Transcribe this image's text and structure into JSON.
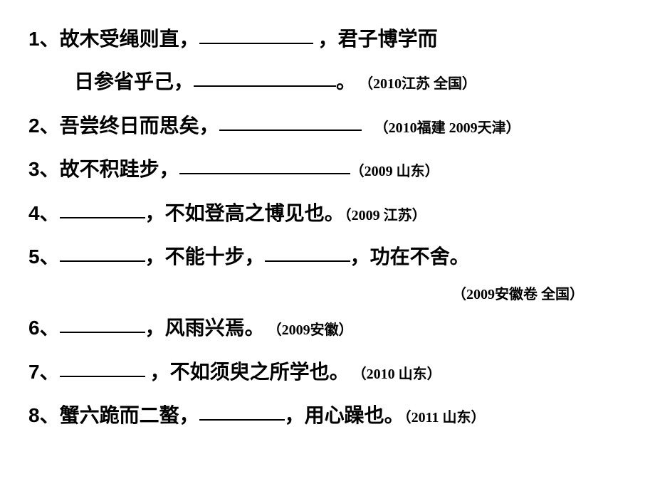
{
  "items": [
    {
      "num": "1、",
      "part1": "故木受绳则直，",
      "part2": " ，君子博学而",
      "cont1": "日参省乎己，",
      "cont2": "。",
      "source": "（2010江苏  全国）"
    },
    {
      "num": "2、",
      "part1": "吾尝终日而思矣，",
      "source": "（2010福建   2009天津）"
    },
    {
      "num": "3、",
      "part1": "故不积跬步，",
      "source": "（2009  山东）"
    },
    {
      "num": "4、",
      "part2": "，不如登高之博见也。",
      "source": "（2009  江苏）"
    },
    {
      "num": "5、",
      "part2": "，不能十步，",
      "part3": "，功在不舍。",
      "source": "（2009安徽卷   全国）"
    },
    {
      "num": "6、",
      "part2": "，风雨兴焉。",
      "source": "（2009安徽）"
    },
    {
      "num": "7、",
      "part2": " ，不如须臾之所学也。",
      "source": "（2010  山东）"
    },
    {
      "num": "8、",
      "part1": "蟹六跪而二螯，",
      "part3": "，用心躁也。",
      "source": "（2011 山东）"
    }
  ]
}
